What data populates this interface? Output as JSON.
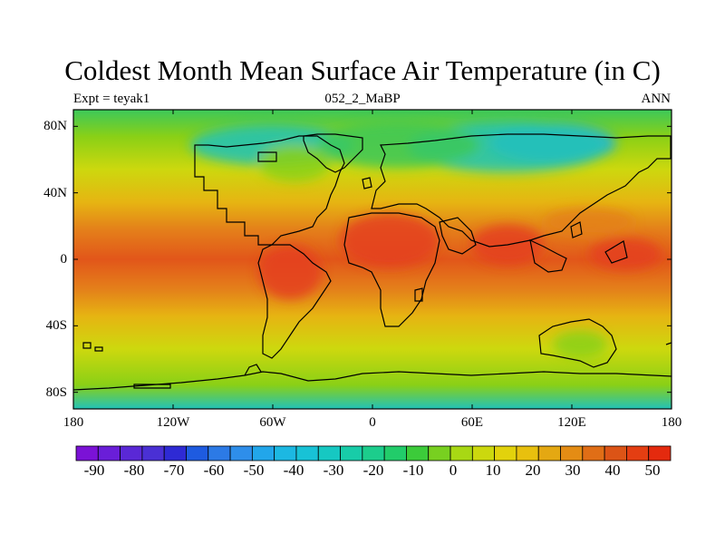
{
  "title": "Coldest Month Mean Surface Air Temperature (in C)",
  "subtitle_left": "Expt = teyak1",
  "subtitle_center": "052_2_MaBP",
  "subtitle_right": "ANN",
  "map": {
    "projection": "cylindrical-equidistant",
    "lon_range": [
      -180,
      180
    ],
    "lat_range": [
      -90,
      90
    ],
    "x_ticks": [
      {
        "lon": -180,
        "label": "180"
      },
      {
        "lon": -120,
        "label": "120W"
      },
      {
        "lon": -60,
        "label": "60W"
      },
      {
        "lon": 0,
        "label": "0"
      },
      {
        "lon": 60,
        "label": "60E"
      },
      {
        "lon": 120,
        "label": "120E"
      },
      {
        "lon": 180,
        "label": "180"
      }
    ],
    "y_ticks": [
      {
        "lat": 80,
        "label": "80N"
      },
      {
        "lat": 40,
        "label": "40N"
      },
      {
        "lat": 0,
        "label": "0"
      },
      {
        "lat": -40,
        "label": "40S"
      },
      {
        "lat": -80,
        "label": "80S"
      }
    ]
  },
  "colorbar": {
    "labels": [
      "-90",
      "-80",
      "-70",
      "-60",
      "-50",
      "-40",
      "-30",
      "-20",
      "-10",
      "0",
      "10",
      "20",
      "30",
      "40",
      "50"
    ],
    "colors": [
      "#7b12d6",
      "#6a1ed8",
      "#5a28d6",
      "#4a30d4",
      "#2e2ad4",
      "#1e5be0",
      "#2c7ae6",
      "#2e8eea",
      "#22a6ea",
      "#1cb8e2",
      "#18c2d6",
      "#16c8c2",
      "#18cca8",
      "#1ccd8c",
      "#22cc6a",
      "#3ccb3a",
      "#78d020",
      "#a8d814",
      "#ccd80e",
      "#e2d20c",
      "#e8c00e",
      "#e4a812",
      "#e48c14",
      "#e06e16",
      "#dc5416",
      "#e43e12",
      "#e42a0e"
    ]
  },
  "field_colors": {
    "polar": "#3cc85a",
    "subpolar": "#8ad016",
    "mid": "#cdd80e",
    "subtropical": "#e6b412",
    "tropical": "#e4801a",
    "equatorial": "#e2561a",
    "continental_hot": "#e4401c",
    "cold_high_lat": "#22c2b8",
    "very_cold": "#1eb4dc"
  }
}
